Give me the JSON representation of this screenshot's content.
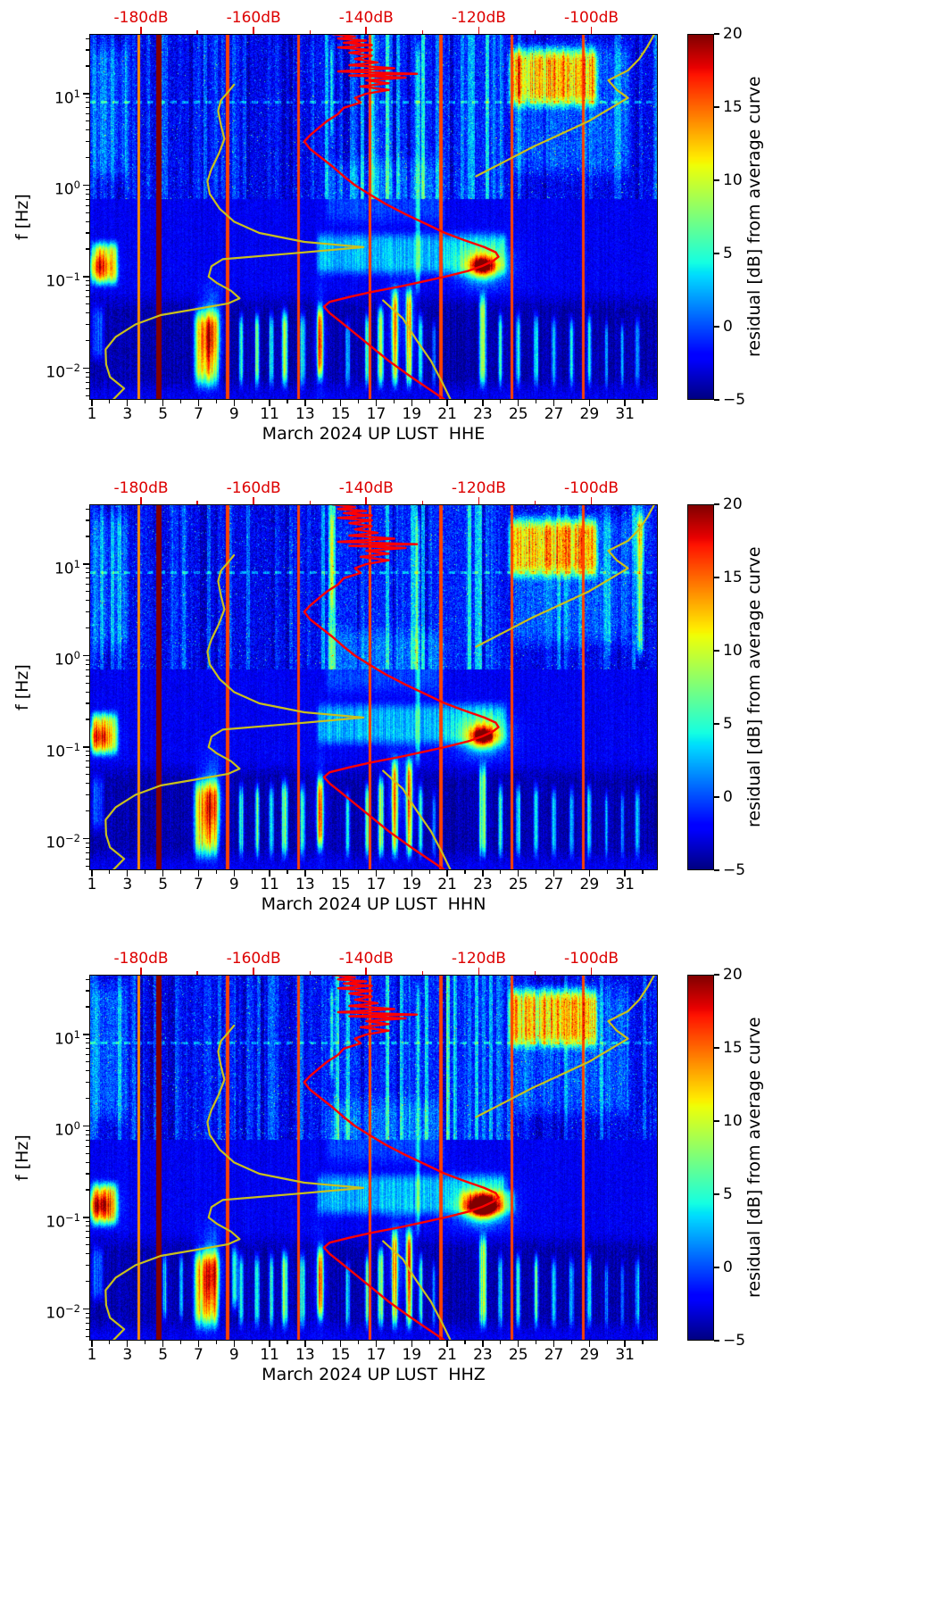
{
  "chart_data": {
    "type": "heatmap",
    "subtype": "seismic-noise-residual-spectrograms",
    "panels": [
      {
        "xlabel": "March 2024 UP LUST  HHE",
        "ylabel": "f [Hz]",
        "colorbar_label": "residual [dB] from average curve",
        "seed": 11,
        "extra_stripes": [],
        "extra_blobs": []
      },
      {
        "xlabel": "March 2024 UP LUST  HHN",
        "ylabel": "f [Hz]",
        "colorbar_label": "residual [dB] from average curve",
        "seed": 22,
        "extra_stripes": [
          [
            31.55,
            32.15,
            0.8,
            45,
            9
          ]
        ],
        "extra_blobs": [
          [
            31.85,
            25,
            0.3,
            0.35,
            5
          ]
        ]
      },
      {
        "xlabel": "March 2024 UP LUST  HHZ",
        "ylabel": "f [Hz]",
        "colorbar_label": "residual [dB] from average curve",
        "seed": 33,
        "extra_stripes": [
          [
            4.9,
            5.3,
            0.006,
            0.05,
            7
          ],
          [
            5.85,
            6.2,
            0.006,
            0.05,
            8
          ],
          [
            8.8,
            9.3,
            0.008,
            0.06,
            9
          ],
          [
            21.5,
            25.0,
            0.1,
            0.22,
            4
          ]
        ],
        "extra_blobs": [
          [
            23.1,
            0.13,
            0.8,
            0.1,
            5
          ],
          [
            1.3,
            0.15,
            0.7,
            0.12,
            4
          ]
        ]
      }
    ],
    "common": {
      "axes": {
        "x_tick_labels": [
          1,
          3,
          5,
          7,
          9,
          11,
          13,
          15,
          17,
          19,
          21,
          23,
          25,
          27,
          29,
          31
        ],
        "x_minor_days": [
          2,
          4,
          6,
          8,
          10,
          12,
          14,
          16,
          18,
          20,
          22,
          24,
          26,
          28,
          30,
          32
        ],
        "x_range_days": [
          0.85,
          32.85
        ],
        "y_scale": "log",
        "f_range_hz": [
          0.0045,
          45
        ],
        "y_ticks": [
          {
            "base": "10",
            "exp": "1",
            "f": 10
          },
          {
            "base": "10",
            "exp": "0",
            "f": 1
          },
          {
            "base": "10",
            "exp": "−1",
            "f": 0.1
          },
          {
            "base": "10",
            "exp": "−2",
            "f": 0.01
          }
        ]
      },
      "top_axis": {
        "labels": [
          "-180dB",
          "-160dB",
          "-140dB",
          "-120dB",
          "-100dB"
        ],
        "values_db": [
          -180,
          -160,
          -140,
          -120,
          -100
        ],
        "minor_values_db": [
          -170,
          -150,
          -130,
          -110
        ],
        "range_db": [
          -189.2,
          -88.2
        ],
        "color": "#dd0000"
      },
      "colorbar": {
        "range": [
          -5,
          20
        ],
        "colormap": "jet",
        "ticks": [
          {
            "v": 20,
            "label": "20"
          },
          {
            "v": 15,
            "label": "15"
          },
          {
            "v": 10,
            "label": "10"
          },
          {
            "v": 5,
            "label": "5"
          },
          {
            "v": 0,
            "label": "0"
          },
          {
            "v": -5,
            "label": "−5"
          }
        ]
      },
      "curves": {
        "average_psd": {
          "color": "#ff0000",
          "points_f_db": [
            [
              45,
              -146
            ],
            [
              42,
              -142
            ],
            [
              40,
              -145
            ],
            [
              38,
              -140
            ],
            [
              36,
              -144
            ],
            [
              34,
              -139
            ],
            [
              32,
              -145
            ],
            [
              30,
              -139
            ],
            [
              28,
              -143
            ],
            [
              26,
              -139
            ],
            [
              24,
              -142
            ],
            [
              22,
              -138
            ],
            [
              20.5,
              -143
            ],
            [
              19,
              -135
            ],
            [
              17.5,
              -145
            ],
            [
              16.5,
              -131
            ],
            [
              15.8,
              -143
            ],
            [
              15,
              -133
            ],
            [
              14,
              -140
            ],
            [
              13,
              -136
            ],
            [
              12,
              -141
            ],
            [
              11,
              -136
            ],
            [
              10,
              -140
            ],
            [
              9,
              -142
            ],
            [
              8,
              -141
            ],
            [
              7,
              -144
            ],
            [
              6,
              -145
            ],
            [
              5,
              -147
            ],
            [
              4.2,
              -148.5
            ],
            [
              3.5,
              -150
            ],
            [
              3,
              -151
            ],
            [
              2.5,
              -150
            ],
            [
              2,
              -148
            ],
            [
              1.6,
              -146
            ],
            [
              1.25,
              -144
            ],
            [
              1,
              -142
            ],
            [
              0.8,
              -139.5
            ],
            [
              0.62,
              -136.5
            ],
            [
              0.48,
              -133
            ],
            [
              0.38,
              -129.5
            ],
            [
              0.3,
              -126
            ],
            [
              0.25,
              -122.5
            ],
            [
              0.21,
              -119
            ],
            [
              0.185,
              -117
            ],
            [
              0.165,
              -116.5
            ],
            [
              0.148,
              -117.5
            ],
            [
              0.13,
              -119.5
            ],
            [
              0.115,
              -122
            ],
            [
              0.1,
              -126
            ],
            [
              0.088,
              -130
            ],
            [
              0.078,
              -134
            ],
            [
              0.068,
              -139
            ],
            [
              0.06,
              -143
            ],
            [
              0.053,
              -146.5
            ],
            [
              0.047,
              -147.5
            ],
            [
              0.04,
              -146.5
            ],
            [
              0.032,
              -144.5
            ],
            [
              0.024,
              -142
            ],
            [
              0.017,
              -139
            ],
            [
              0.012,
              -136
            ],
            [
              0.008,
              -132
            ],
            [
              0.006,
              -129
            ],
            [
              0.0045,
              -126
            ]
          ]
        },
        "noise_models": {
          "color": "#c9c01d",
          "segments_f_db": [
            [
              [
                0.0045,
                -185
              ],
              [
                0.006,
                -183
              ],
              [
                0.008,
                -185.5
              ],
              [
                0.011,
                -186.2
              ],
              [
                0.016,
                -186.3
              ],
              [
                0.022,
                -184.5
              ],
              [
                0.03,
                -181
              ],
              [
                0.038,
                -176.5
              ],
              [
                0.045,
                -169.5
              ],
              [
                0.051,
                -164.5
              ],
              [
                0.058,
                -162.5
              ],
              [
                0.07,
                -164
              ],
              [
                0.085,
                -166.5
              ],
              [
                0.1,
                -168
              ],
              [
                0.13,
                -167.5
              ],
              [
                0.155,
                -165.5
              ],
              [
                0.18,
                -153
              ],
              [
                0.21,
                -140.5
              ],
              [
                0.24,
                -151
              ],
              [
                0.3,
                -159
              ],
              [
                0.4,
                -163.5
              ],
              [
                0.55,
                -166
              ],
              [
                0.8,
                -167.8
              ],
              [
                1.1,
                -168.2
              ],
              [
                1.5,
                -167.5
              ],
              [
                2.2,
                -166.2
              ],
              [
                3.2,
                -165.2
              ],
              [
                4.5,
                -165.8
              ],
              [
                6.5,
                -166.3
              ],
              [
                8.5,
                -165.8
              ],
              [
                10.5,
                -164.5
              ],
              [
                12.5,
                -163.5
              ]
            ],
            [
              [
                1.25,
                -120.5
              ],
              [
                1.8,
                -115.5
              ],
              [
                2.6,
                -110.5
              ],
              [
                3.6,
                -105.5
              ],
              [
                5,
                -100.5
              ],
              [
                7,
                -96.5
              ],
              [
                9,
                -93.5
              ],
              [
                11,
                -95.5
              ],
              [
                14,
                -97
              ],
              [
                18,
                -93.5
              ],
              [
                24,
                -91.5
              ],
              [
                33,
                -90
              ],
              [
                45,
                -88.8
              ]
            ],
            [
              [
                0.055,
                -137
              ],
              [
                0.035,
                -133.5
              ],
              [
                0.02,
                -131
              ],
              [
                0.012,
                -128.5
              ],
              [
                0.007,
                -126.5
              ],
              [
                0.0045,
                -125
              ]
            ]
          ]
        }
      },
      "spectrogram": {
        "base_db": -2.4,
        "stripes": [
          [
            0.85,
            2.6,
            0.07,
            0.28,
            12
          ],
          [
            0.85,
            1.8,
            0.01,
            0.06,
            4
          ],
          [
            0.85,
            3.2,
            0.9,
            45,
            2.5
          ],
          [
            0.5,
            33.2,
            0.0045,
            0.078,
            -1.6
          ],
          [
            6.6,
            8.3,
            0.005,
            0.055,
            12
          ],
          [
            9.2,
            9.6,
            0.005,
            0.05,
            9
          ],
          [
            10.1,
            10.5,
            0.005,
            0.05,
            10
          ],
          [
            10.9,
            11.3,
            0.005,
            0.05,
            9
          ],
          [
            11.6,
            12.1,
            0.005,
            0.055,
            12
          ],
          [
            12.6,
            13.1,
            0.005,
            0.05,
            8
          ],
          [
            13.6,
            14.1,
            0.006,
            0.06,
            13
          ],
          [
            15.2,
            15.6,
            0.005,
            0.04,
            7
          ],
          [
            16.3,
            16.7,
            0.005,
            0.05,
            10
          ],
          [
            17,
            17.5,
            0.005,
            0.06,
            12
          ],
          [
            17.8,
            18.3,
            0.005,
            0.09,
            13
          ],
          [
            18.6,
            19.1,
            0.005,
            0.09,
            13
          ],
          [
            19.3,
            19.7,
            0.005,
            0.05,
            9
          ],
          [
            20.1,
            20.4,
            0.005,
            0.04,
            6
          ],
          [
            22.7,
            23.3,
            0.005,
            0.08,
            12
          ],
          [
            23.8,
            24.2,
            0.005,
            0.05,
            8
          ],
          [
            24.8,
            25.2,
            0.005,
            0.05,
            8
          ],
          [
            25.8,
            26.2,
            0.005,
            0.05,
            9
          ],
          [
            26.8,
            27.2,
            0.005,
            0.045,
            7
          ],
          [
            27.8,
            28.2,
            0.005,
            0.045,
            7
          ],
          [
            28.8,
            29.2,
            0.005,
            0.05,
            8
          ],
          [
            29.8,
            30.1,
            0.005,
            0.04,
            6
          ],
          [
            30.7,
            31,
            0.005,
            0.04,
            6
          ],
          [
            31.5,
            31.9,
            0.005,
            0.045,
            7
          ],
          [
            13.5,
            24.5,
            0.09,
            0.35,
            5
          ],
          [
            14,
            21,
            0.3,
            2.5,
            2
          ],
          [
            24.3,
            29.6,
            6,
            38,
            12
          ],
          [
            24.5,
            31.5,
            1,
            45,
            2.5
          ],
          [
            19.15,
            19.55,
            0.05,
            45,
            5
          ],
          [
            14.35,
            14.65,
            2.5,
            45,
            6
          ]
        ],
        "blobs": [
          [
            23,
            0.13,
            0.5,
            0.08,
            16
          ],
          [
            23,
            0.135,
            1,
            0.16,
            7
          ],
          [
            1.35,
            0.13,
            0.6,
            0.1,
            8
          ],
          [
            7.4,
            0.02,
            0.35,
            0.28,
            7
          ],
          [
            7.9,
            0.025,
            0.3,
            0.28,
            6
          ],
          [
            13.85,
            0.02,
            0.2,
            0.3,
            6
          ],
          [
            18.05,
            0.03,
            0.25,
            0.3,
            5
          ],
          [
            18.85,
            0.03,
            0.25,
            0.3,
            5
          ]
        ],
        "vlines": [
          [
            4.72,
            0.2,
            21
          ],
          [
            3.62,
            0.07,
            14
          ],
          [
            8.62,
            0.07,
            16
          ],
          [
            12.62,
            0.07,
            16
          ],
          [
            16.62,
            0.07,
            16
          ],
          [
            20.62,
            0.07,
            16
          ],
          [
            24.62,
            0.07,
            16
          ],
          [
            28.62,
            0.07,
            16
          ]
        ],
        "dashed_line": {
          "f_hz": 8,
          "amp": 4
        }
      }
    }
  }
}
